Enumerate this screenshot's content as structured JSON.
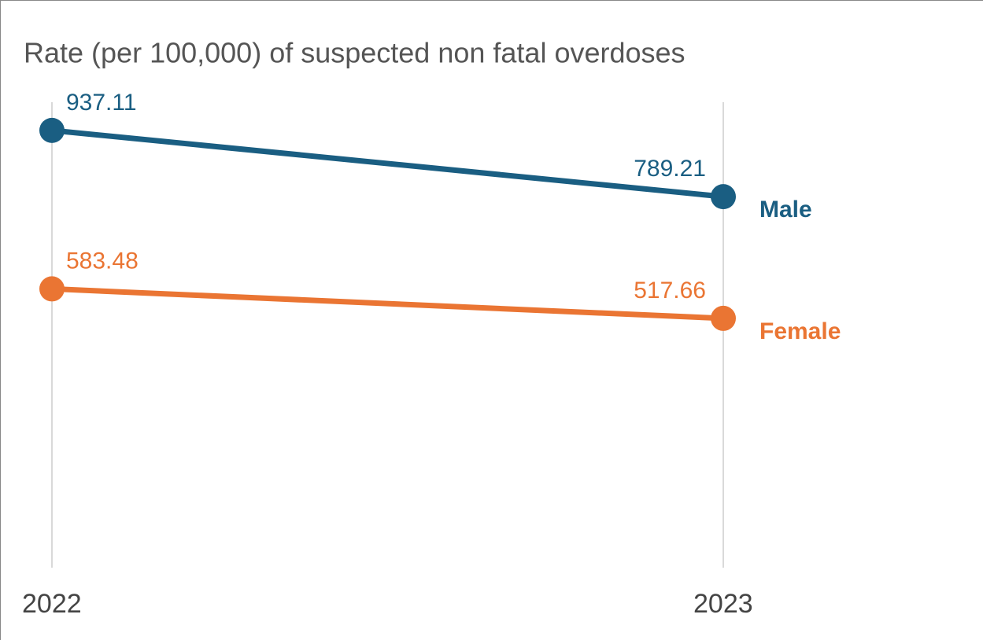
{
  "chart_data": {
    "type": "slope",
    "title": "Rate (per 100,000) of suspected non fatal overdoses",
    "categories": [
      "2022",
      "2023"
    ],
    "series": [
      {
        "name": "Male",
        "color": "#1a5e82",
        "values": [
          937.11,
          789.21
        ]
      },
      {
        "name": "Female",
        "color": "#ea7533",
        "values": [
          583.48,
          517.66
        ]
      }
    ],
    "ylim": [
      0,
      1000
    ],
    "grid": true
  }
}
